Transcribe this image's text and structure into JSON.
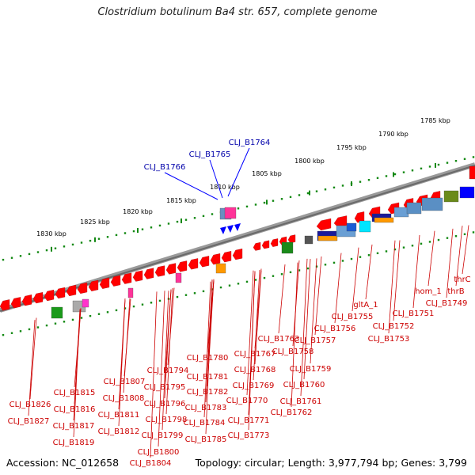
{
  "title": "Clostridium botulinum Ba4 str. 657, complete genome",
  "footer": {
    "accession": "Accession: NC_012658",
    "summary": "Topology: circular; Length: 3,977,794 bp; Genes: 3,799"
  },
  "scale_labels": [
    "1785 kbp",
    "1790 kbp",
    "1795 kbp",
    "1800 kbp",
    "1805 kbp",
    "1810 kbp",
    "1815 kbp",
    "1820 kbp",
    "1825 kbp",
    "1830 kbp"
  ],
  "top_labels": [
    "CLJ_B1764",
    "CLJ_B1765",
    "CLJ_B1766"
  ],
  "bottom_labels": [
    "thrC",
    "thrB",
    "hom_1",
    "CLJ_B1749",
    "CLJ_B1751",
    "gltA_1",
    "CLJ_B1752",
    "CLJ_B1753",
    "CLJ_B1755",
    "CLJ_B1756",
    "CLJ_B1757",
    "CLJ_B1758",
    "CLJ_B1759",
    "CLJ_B1760",
    "CLJ_B1761",
    "CLJ_B1762",
    "CLJ_B1763",
    "CLJ_B1767",
    "CLJ_B1768",
    "CLJ_B1769",
    "CLJ_B1770",
    "CLJ_B1771",
    "CLJ_B1773",
    "CLJ_B1780",
    "CLJ_B1781",
    "CLJ_B1782",
    "CLJ_B1783",
    "CLJ_B1784",
    "CLJ_B1785",
    "CLJ_B1794",
    "CLJ_B1795",
    "CLJ_B1796",
    "CLJ_B1798",
    "CLJ_B1799",
    "CLJ_B1800",
    "CLJ_B1804",
    "CLJ_B1807",
    "CLJ_B1808",
    "CLJ_B1811",
    "CLJ_B1812",
    "CLJ_B1815",
    "CLJ_B1816",
    "CLJ_B1817",
    "CLJ_B1819",
    "CLJ_B1826",
    "CLJ_B1827"
  ],
  "colors": {
    "forward_gene": "#ff0000",
    "reverse_gene": "#0000ff",
    "backbone": "#888888",
    "tick": "#118811",
    "label_forward": "#cc0000",
    "label_reverse": "#0000aa"
  }
}
